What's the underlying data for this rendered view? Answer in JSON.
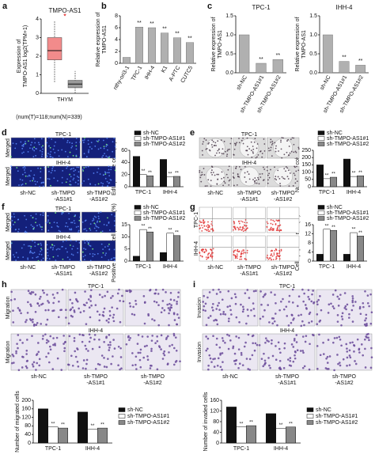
{
  "chart_data": [
    {
      "type": "box",
      "panel": "a",
      "title": "TMPO-AS1",
      "ylabel": [
        "Expression of",
        "TMPO-AS1 log2(TPM+1)"
      ],
      "category": "THYM",
      "note": "(num(T)=118;num(N)=339)",
      "annotation": "*",
      "boxes": [
        {
          "color": "#f28b8b",
          "whisker_low": 0.6,
          "q1": 1.8,
          "median": 2.3,
          "q3": 3.0,
          "whisker_high": 3.9
        },
        {
          "color": "#9a9a9a",
          "whisker_low": 0.0,
          "q1": 0.3,
          "median": 0.5,
          "q3": 0.7,
          "whisker_high": 1.2
        }
      ],
      "ylim": [
        0,
        4
      ],
      "yticks": [
        0,
        1,
        2,
        3,
        4
      ]
    },
    {
      "type": "bar",
      "panel": "b",
      "ylabel": [
        "Relative expression of",
        "TMPO-AS1"
      ],
      "categories": [
        "nthy-ori3-1",
        "TPC-1",
        "IHH-4",
        "K1",
        "A-PTC",
        "CUTC5"
      ],
      "values": [
        1,
        6.1,
        6.0,
        5.1,
        4.3,
        3.5
      ],
      "color": "#b0b0b0",
      "annotations": [
        null,
        "**",
        "**",
        "**",
        "**",
        "**"
      ],
      "ylim": [
        0,
        8
      ],
      "yticks": [
        0,
        2,
        4,
        6,
        8
      ]
    },
    {
      "type": "bar",
      "panel": "c",
      "title": "TPC-1",
      "ylabel": [
        "Relative expression of",
        "TMPO-AS1"
      ],
      "categories": [
        "sh-NC",
        "sh-TMPO-AS1#1",
        "sh-TMPO-AS1#2"
      ],
      "values": [
        1.0,
        0.25,
        0.35
      ],
      "color": "#b0b0b0",
      "annotations": [
        null,
        "**",
        "**"
      ],
      "ylim": [
        0,
        1.5
      ],
      "yticks": [
        {
          "value": 0,
          "label": "0.0"
        },
        0.5,
        {
          "value": 1,
          "label": "1.0"
        },
        1.5
      ]
    },
    {
      "type": "bar",
      "title": "IHH-4",
      "ylabel": [
        "Relative expression of",
        "TMPO-AS1"
      ],
      "categories": [
        "sh-NC",
        "sh-TMPO-AS1#1",
        "sh-TMPO-AS1#2"
      ],
      "values": [
        1.0,
        0.3,
        0.2
      ],
      "color": "#b0b0b0",
      "annotations": [
        null,
        "**",
        "**"
      ],
      "ylim": [
        0,
        1.5
      ],
      "yticks": [
        {
          "value": 0,
          "label": "0.0"
        },
        0.5,
        {
          "value": 1,
          "label": "1.0"
        },
        1.5
      ]
    },
    {
      "type": "grouped_bar",
      "ylabel": [
        "EdU positive cells (%)"
      ],
      "categories": [
        "TPC-1",
        "IHH-4"
      ],
      "legend": "top",
      "series": [
        {
          "name": "sh-NC",
          "color": "#111111",
          "values": [
            50,
            45
          ],
          "annotations": [
            null,
            null
          ]
        },
        {
          "name": "sh-TMPO-AS1#1",
          "color": "#ffffff",
          "values": [
            20,
            16
          ],
          "annotations": [
            "**",
            "**"
          ]
        },
        {
          "name": "sh-TMPO-AS1#2",
          "color": "#888888",
          "values": [
            18,
            17
          ],
          "annotations": [
            "**",
            "**"
          ]
        }
      ],
      "ylim": [
        0,
        60
      ],
      "yticks": [
        0,
        20,
        40,
        60
      ]
    },
    {
      "type": "grouped_bar",
      "ylabel": [
        "Number of colonies"
      ],
      "categories": [
        "TPC-1",
        "IHH-4"
      ],
      "legend": "top",
      "series": [
        {
          "name": "sh-NC",
          "color": "#111111",
          "values": [
            150,
            190
          ],
          "annotations": [
            null,
            null
          ]
        },
        {
          "name": "sh-TMPO-AS1#1",
          "color": "#ffffff",
          "values": [
            55,
            70
          ],
          "annotations": [
            "**",
            "**"
          ]
        },
        {
          "name": "sh-TMPO-AS1#2",
          "color": "#888888",
          "values": [
            65,
            75
          ],
          "annotations": [
            "**",
            "**"
          ]
        }
      ],
      "ylim": [
        0,
        250
      ],
      "yticks": [
        0,
        50,
        100,
        150,
        200,
        250
      ]
    },
    {
      "type": "grouped_bar",
      "ylabel": [
        "Positive stained cell percent (%)"
      ],
      "categories": [
        "TPC-1",
        "IHH-4"
      ],
      "legend": "top",
      "series": [
        {
          "name": "sh-NC",
          "color": "#111111",
          "values": [
            2,
            3.5
          ],
          "annotations": [
            null,
            null
          ]
        },
        {
          "name": "sh-TMPO-AS1#1",
          "color": "#ffffff",
          "values": [
            13,
            11.5
          ],
          "annotations": [
            "**",
            "**"
          ]
        },
        {
          "name": "sh-TMPO-AS1#2",
          "color": "#888888",
          "values": [
            12,
            10.5
          ],
          "annotations": [
            "**",
            "**"
          ]
        }
      ],
      "ylim": [
        0,
        15
      ],
      "yticks": [
        0,
        5,
        10,
        15
      ]
    },
    {
      "type": "grouped_bar",
      "ylabel": [
        "Cell apoptosis rate (%)"
      ],
      "categories": [
        "TPC-1",
        "IHH-4"
      ],
      "legend": "top",
      "series": [
        {
          "name": "sh-NC",
          "color": "#111111",
          "values": [
            3,
            3
          ],
          "annotations": [
            null,
            null
          ]
        },
        {
          "name": "sh-TMPO-AS1#1",
          "color": "#ffffff",
          "values": [
            14,
            12.5
          ],
          "annotations": [
            "**",
            "**"
          ]
        },
        {
          "name": "sh-TMPO-AS1#2",
          "color": "#888888",
          "values": [
            13.5,
            11
          ],
          "annotations": [
            "**",
            "**"
          ]
        }
      ],
      "ylim": [
        0,
        16
      ],
      "yticks": [
        0,
        4,
        8,
        12,
        16
      ]
    },
    {
      "type": "grouped_bar",
      "ylabel": [
        "Number of migrated cells"
      ],
      "categories": [
        "TPC-1",
        "IHH-4"
      ],
      "legend": "right",
      "series": [
        {
          "name": "sh-NC",
          "color": "#111111",
          "values": [
            160,
            145
          ],
          "annotations": [
            null,
            null
          ]
        },
        {
          "name": "sh-TMPO-AS1#1",
          "color": "#ffffff",
          "values": [
            75,
            65
          ],
          "annotations": [
            "**",
            "**"
          ]
        },
        {
          "name": "sh-TMPO-AS1#2",
          "color": "#888888",
          "values": [
            70,
            70
          ],
          "annotations": [
            "**",
            "**"
          ]
        }
      ],
      "ylim": [
        0,
        200
      ],
      "yticks": [
        0,
        40,
        80,
        120,
        160,
        200
      ]
    },
    {
      "type": "grouped_bar",
      "ylabel": [
        "Number of invaded cells"
      ],
      "categories": [
        "TPC-1",
        "IHH-4"
      ],
      "legend": "right",
      "series": [
        {
          "name": "sh-NC",
          "color": "#111111",
          "values": [
            135,
            110
          ],
          "annotations": [
            null,
            null
          ]
        },
        {
          "name": "sh-TMPO-AS1#1",
          "color": "#ffffff",
          "values": [
            60,
            55
          ],
          "annotations": [
            "**",
            "**"
          ]
        },
        {
          "name": "sh-TMPO-AS1#2",
          "color": "#888888",
          "values": [
            65,
            60
          ],
          "annotations": [
            "**",
            "**"
          ]
        }
      ],
      "ylim": [
        0,
        160
      ],
      "yticks": [
        0,
        40,
        80,
        120,
        160
      ]
    }
  ],
  "image_panels": [
    {
      "panel": "d",
      "style": "fluor",
      "cell_lines": [
        "TPC-1",
        "IHH-4"
      ],
      "row_labels": [
        "Merged",
        "Merged"
      ],
      "columns": [
        [
          "sh-NC"
        ],
        [
          "sh-TMPO",
          "-AS1#1"
        ],
        [
          "sh-TMPO",
          "-AS1#2"
        ]
      ]
    },
    {
      "panel": "e",
      "style": "colony",
      "cell_lines": [
        "TPC-1",
        "IHH-4"
      ],
      "columns": [
        [
          "sh-NC"
        ],
        [
          "sh-TMPO",
          "-AS1#1"
        ],
        [
          "sh-TMPO",
          "-AS1#2"
        ]
      ]
    },
    {
      "panel": "f",
      "style": "fluor",
      "cell_lines": [
        "TPC-1",
        "IHH-4"
      ],
      "row_labels": [
        "Merged",
        "Merged"
      ],
      "columns": [
        [
          "sh-NC"
        ],
        [
          "sh-TMPO",
          "-AS1#1"
        ],
        [
          "sh-TMPO",
          "-AS1#2"
        ]
      ]
    },
    {
      "panel": "g",
      "style": "flow",
      "row_labels": [
        "TPC-1",
        "IHH-4"
      ],
      "columns": [
        [
          "sh-NC"
        ],
        [
          "sh-TMPO",
          "-AS1#1"
        ],
        [
          "sh-TMPO",
          "-AS1#2"
        ]
      ]
    },
    {
      "panel": "h",
      "style": "stain",
      "cell_lines": [
        "TPC-1",
        "IHH-4"
      ],
      "row_labels": [
        "Migration",
        "Migration"
      ],
      "columns": [
        [
          "sh-NC"
        ],
        [
          "sh-TMPO",
          "-AS1#1"
        ],
        [
          "sh-TMPO",
          "-AS1#2"
        ]
      ]
    },
    {
      "panel": "i",
      "style": "stain",
      "cell_lines": [
        "TPC-1",
        "IHH-4"
      ],
      "row_labels": [
        "Invasion",
        "Invasion"
      ],
      "columns": [
        [
          "sh-NC"
        ],
        [
          "sh-TMPO",
          "-AS1#1"
        ],
        [
          "sh-TMPO",
          "-AS1#2"
        ]
      ]
    }
  ]
}
